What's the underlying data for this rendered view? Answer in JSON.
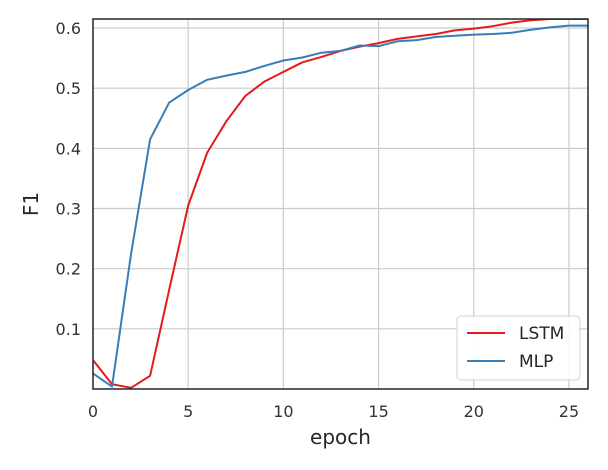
{
  "chart_data": {
    "type": "line",
    "title": "",
    "xlabel": "epoch",
    "ylabel": "F1",
    "xlim": [
      0,
      26
    ],
    "ylim": [
      0,
      0.615
    ],
    "xticks": [
      0,
      5,
      10,
      15,
      20,
      25
    ],
    "yticks": [
      0.1,
      0.2,
      0.3,
      0.4,
      0.5,
      0.6
    ],
    "xtick_labels": [
      "0",
      "5",
      "10",
      "15",
      "20",
      "25"
    ],
    "ytick_labels": [
      "0.1",
      "0.2",
      "0.3",
      "0.4",
      "0.5",
      "0.6"
    ],
    "grid": true,
    "legend_position": "lower-right",
    "x": [
      0,
      1,
      2,
      3,
      4,
      5,
      6,
      7,
      8,
      9,
      10,
      11,
      12,
      13,
      14,
      15,
      16,
      17,
      18,
      19,
      20,
      21,
      22,
      23,
      24,
      25,
      26
    ],
    "series": [
      {
        "name": "LSTM",
        "color": "#e41a1c",
        "values": [
          0.048,
          0.008,
          0.002,
          0.022,
          0.165,
          0.305,
          0.393,
          0.445,
          0.487,
          0.511,
          0.527,
          0.543,
          0.552,
          0.562,
          0.569,
          0.575,
          0.582,
          0.586,
          0.59,
          0.596,
          0.599,
          0.603,
          0.609,
          0.613,
          0.615,
          0.615,
          0.615
        ]
      },
      {
        "name": "MLP",
        "color": "#377eb8",
        "values": [
          0.026,
          0.004,
          0.225,
          0.415,
          0.476,
          0.497,
          0.514,
          0.521,
          0.527,
          0.537,
          0.546,
          0.551,
          0.559,
          0.562,
          0.571,
          0.57,
          0.578,
          0.58,
          0.585,
          0.587,
          0.589,
          0.59,
          0.592,
          0.597,
          0.601,
          0.604,
          0.604
        ]
      }
    ]
  }
}
